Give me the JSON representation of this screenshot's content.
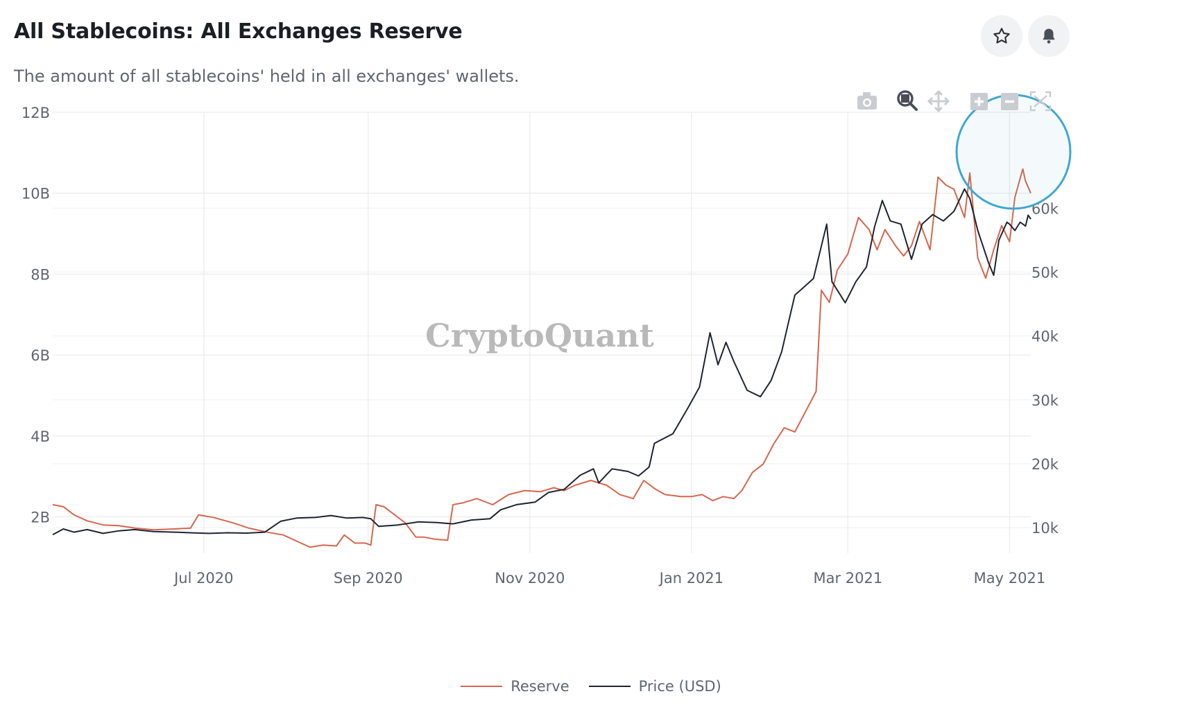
{
  "header": {
    "title": "All Stablecoins: All Exchanges Reserve",
    "subtitle": "The amount of all stablecoins' held in all exchanges' wallets."
  },
  "actions": {
    "favorite_icon": "star-icon",
    "alert_icon": "bell-icon"
  },
  "toolbar": [
    "camera-icon",
    "zoom-icon",
    "pan-icon",
    "zoom-in-icon",
    "zoom-out-icon",
    "autoscale-icon"
  ],
  "watermark": "CryptoQuant",
  "colors": {
    "reserve": "#d5664f",
    "price": "#1e2430",
    "highlight": "#3ea8cf",
    "grid": "#ececec"
  },
  "chart_data": {
    "type": "line",
    "title": "All Stablecoins: All Exchanges Reserve",
    "x_range": [
      "2020-05-05",
      "2021-05-09"
    ],
    "x_ticks": [
      {
        "label": "Jul 2020",
        "date": "2020-07-01"
      },
      {
        "label": "Sep 2020",
        "date": "2020-09-01"
      },
      {
        "label": "Nov 2020",
        "date": "2020-11-01"
      },
      {
        "label": "Jan 2021",
        "date": "2021-01-01"
      },
      {
        "label": "Mar 2021",
        "date": "2021-03-01"
      },
      {
        "label": "May 2021",
        "date": "2021-05-01"
      }
    ],
    "y_left": {
      "min": 1.1,
      "max": 12.0,
      "ticks": [
        2,
        4,
        6,
        8,
        10,
        12
      ],
      "tick_labels": [
        "2B",
        "4B",
        "6B",
        "8B",
        "10B",
        "12B"
      ],
      "unit": "B"
    },
    "y_right": {
      "min": 6000,
      "max": 75000,
      "ticks": [
        10000,
        20000,
        30000,
        40000,
        50000,
        60000
      ],
      "tick_labels": [
        "10k",
        "20k",
        "30k",
        "40k",
        "50k",
        "60k"
      ]
    },
    "legend": [
      "Reserve",
      "Price (USD)"
    ],
    "annotation": "circle highlighting late-April to May 2021 region",
    "series": [
      {
        "name": "Reserve",
        "axis": "left",
        "unit": "billion USD",
        "points": [
          [
            "2020-05-05",
            2.3
          ],
          [
            "2020-05-09",
            2.25
          ],
          [
            "2020-05-13",
            2.05
          ],
          [
            "2020-05-18",
            1.9
          ],
          [
            "2020-05-24",
            1.8
          ],
          [
            "2020-05-30",
            1.78
          ],
          [
            "2020-06-05",
            1.72
          ],
          [
            "2020-06-12",
            1.68
          ],
          [
            "2020-06-20",
            1.7
          ],
          [
            "2020-06-26",
            1.72
          ],
          [
            "2020-06-29",
            2.05
          ],
          [
            "2020-07-05",
            1.98
          ],
          [
            "2020-07-12",
            1.85
          ],
          [
            "2020-07-18",
            1.72
          ],
          [
            "2020-07-25",
            1.62
          ],
          [
            "2020-07-31",
            1.55
          ],
          [
            "2020-08-05",
            1.4
          ],
          [
            "2020-08-10",
            1.25
          ],
          [
            "2020-08-15",
            1.3
          ],
          [
            "2020-08-20",
            1.28
          ],
          [
            "2020-08-23",
            1.55
          ],
          [
            "2020-08-27",
            1.35
          ],
          [
            "2020-08-31",
            1.35
          ],
          [
            "2020-09-02",
            1.3
          ],
          [
            "2020-09-04",
            2.3
          ],
          [
            "2020-09-07",
            2.25
          ],
          [
            "2020-09-11",
            2.05
          ],
          [
            "2020-09-15",
            1.85
          ],
          [
            "2020-09-19",
            1.5
          ],
          [
            "2020-09-22",
            1.5
          ],
          [
            "2020-09-26",
            1.45
          ],
          [
            "2020-10-01",
            1.42
          ],
          [
            "2020-10-03",
            2.3
          ],
          [
            "2020-10-07",
            2.35
          ],
          [
            "2020-10-12",
            2.45
          ],
          [
            "2020-10-18",
            2.3
          ],
          [
            "2020-10-24",
            2.55
          ],
          [
            "2020-10-30",
            2.65
          ],
          [
            "2020-11-05",
            2.62
          ],
          [
            "2020-11-10",
            2.72
          ],
          [
            "2020-11-14",
            2.65
          ],
          [
            "2020-11-18",
            2.78
          ],
          [
            "2020-11-24",
            2.9
          ],
          [
            "2020-11-30",
            2.78
          ],
          [
            "2020-12-05",
            2.55
          ],
          [
            "2020-12-10",
            2.45
          ],
          [
            "2020-12-14",
            2.9
          ],
          [
            "2020-12-18",
            2.7
          ],
          [
            "2020-12-22",
            2.55
          ],
          [
            "2020-12-28",
            2.5
          ],
          [
            "2021-01-01",
            2.5
          ],
          [
            "2021-01-05",
            2.55
          ],
          [
            "2021-01-09",
            2.4
          ],
          [
            "2021-01-13",
            2.5
          ],
          [
            "2021-01-17",
            2.45
          ],
          [
            "2021-01-20",
            2.65
          ],
          [
            "2021-01-24",
            3.1
          ],
          [
            "2021-01-28",
            3.3
          ],
          [
            "2021-02-01",
            3.8
          ],
          [
            "2021-02-05",
            4.2
          ],
          [
            "2021-02-09",
            4.1
          ],
          [
            "2021-02-13",
            4.6
          ],
          [
            "2021-02-17",
            5.1
          ],
          [
            "2021-02-19",
            7.6
          ],
          [
            "2021-02-22",
            7.3
          ],
          [
            "2021-02-25",
            8.1
          ],
          [
            "2021-03-01",
            8.5
          ],
          [
            "2021-03-05",
            9.4
          ],
          [
            "2021-03-09",
            9.1
          ],
          [
            "2021-03-12",
            8.6
          ],
          [
            "2021-03-15",
            9.1
          ],
          [
            "2021-03-19",
            8.7
          ],
          [
            "2021-03-22",
            8.45
          ],
          [
            "2021-03-25",
            8.7
          ],
          [
            "2021-03-28",
            9.3
          ],
          [
            "2021-04-01",
            8.6
          ],
          [
            "2021-04-04",
            10.4
          ],
          [
            "2021-04-07",
            10.2
          ],
          [
            "2021-04-10",
            10.1
          ],
          [
            "2021-04-14",
            9.4
          ],
          [
            "2021-04-16",
            10.5
          ],
          [
            "2021-04-19",
            8.4
          ],
          [
            "2021-04-22",
            7.9
          ],
          [
            "2021-04-25",
            8.6
          ],
          [
            "2021-04-28",
            9.2
          ],
          [
            "2021-05-01",
            8.8
          ],
          [
            "2021-05-03",
            9.9
          ],
          [
            "2021-05-06",
            10.6
          ],
          [
            "2021-05-07",
            10.3
          ],
          [
            "2021-05-09",
            10.0
          ]
        ]
      },
      {
        "name": "Price (USD)",
        "axis": "right",
        "unit": "USD",
        "points": [
          [
            "2020-05-05",
            8900
          ],
          [
            "2020-05-09",
            9800
          ],
          [
            "2020-05-13",
            9300
          ],
          [
            "2020-05-18",
            9700
          ],
          [
            "2020-05-24",
            9100
          ],
          [
            "2020-05-30",
            9500
          ],
          [
            "2020-06-05",
            9700
          ],
          [
            "2020-06-12",
            9400
          ],
          [
            "2020-06-20",
            9300
          ],
          [
            "2020-06-26",
            9200
          ],
          [
            "2020-07-03",
            9100
          ],
          [
            "2020-07-10",
            9200
          ],
          [
            "2020-07-17",
            9150
          ],
          [
            "2020-07-24",
            9300
          ],
          [
            "2020-07-30",
            11000
          ],
          [
            "2020-08-05",
            11500
          ],
          [
            "2020-08-12",
            11600
          ],
          [
            "2020-08-18",
            11900
          ],
          [
            "2020-08-24",
            11500
          ],
          [
            "2020-08-30",
            11600
          ],
          [
            "2020-09-02",
            11400
          ],
          [
            "2020-09-05",
            10200
          ],
          [
            "2020-09-12",
            10400
          ],
          [
            "2020-09-20",
            10900
          ],
          [
            "2020-09-27",
            10800
          ],
          [
            "2020-10-03",
            10600
          ],
          [
            "2020-10-10",
            11200
          ],
          [
            "2020-10-17",
            11400
          ],
          [
            "2020-10-21",
            12800
          ],
          [
            "2020-10-27",
            13600
          ],
          [
            "2020-11-03",
            14000
          ],
          [
            "2020-11-08",
            15500
          ],
          [
            "2020-11-14",
            16000
          ],
          [
            "2020-11-20",
            18200
          ],
          [
            "2020-11-25",
            19200
          ],
          [
            "2020-11-27",
            17000
          ],
          [
            "2020-12-02",
            19200
          ],
          [
            "2020-12-08",
            18800
          ],
          [
            "2020-12-12",
            18100
          ],
          [
            "2020-12-16",
            19500
          ],
          [
            "2020-12-18",
            23200
          ],
          [
            "2020-12-25",
            24700
          ],
          [
            "2020-12-31",
            29000
          ],
          [
            "2021-01-04",
            32000
          ],
          [
            "2021-01-08",
            40500
          ],
          [
            "2021-01-11",
            35500
          ],
          [
            "2021-01-14",
            39000
          ],
          [
            "2021-01-17",
            36000
          ],
          [
            "2021-01-22",
            31500
          ],
          [
            "2021-01-27",
            30500
          ],
          [
            "2021-01-31",
            33000
          ],
          [
            "2021-02-04",
            37500
          ],
          [
            "2021-02-09",
            46400
          ],
          [
            "2021-02-12",
            47500
          ],
          [
            "2021-02-16",
            49000
          ],
          [
            "2021-02-21",
            57500
          ],
          [
            "2021-02-23",
            48500
          ],
          [
            "2021-02-28",
            45200
          ],
          [
            "2021-03-04",
            48500
          ],
          [
            "2021-03-08",
            50800
          ],
          [
            "2021-03-11",
            57000
          ],
          [
            "2021-03-14",
            61200
          ],
          [
            "2021-03-17",
            58000
          ],
          [
            "2021-03-21",
            57500
          ],
          [
            "2021-03-25",
            52000
          ],
          [
            "2021-03-29",
            57500
          ],
          [
            "2021-04-02",
            59000
          ],
          [
            "2021-04-06",
            58000
          ],
          [
            "2021-04-10",
            59500
          ],
          [
            "2021-04-14",
            63000
          ],
          [
            "2021-04-16",
            61500
          ],
          [
            "2021-04-19",
            56500
          ],
          [
            "2021-04-23",
            51500
          ],
          [
            "2021-04-25",
            49500
          ],
          [
            "2021-04-27",
            55000
          ],
          [
            "2021-04-30",
            57800
          ],
          [
            "2021-05-01",
            57500
          ],
          [
            "2021-05-03",
            56500
          ],
          [
            "2021-05-05",
            57800
          ],
          [
            "2021-05-07",
            57200
          ],
          [
            "2021-05-08",
            58900
          ],
          [
            "2021-05-09",
            58300
          ]
        ]
      }
    ]
  }
}
